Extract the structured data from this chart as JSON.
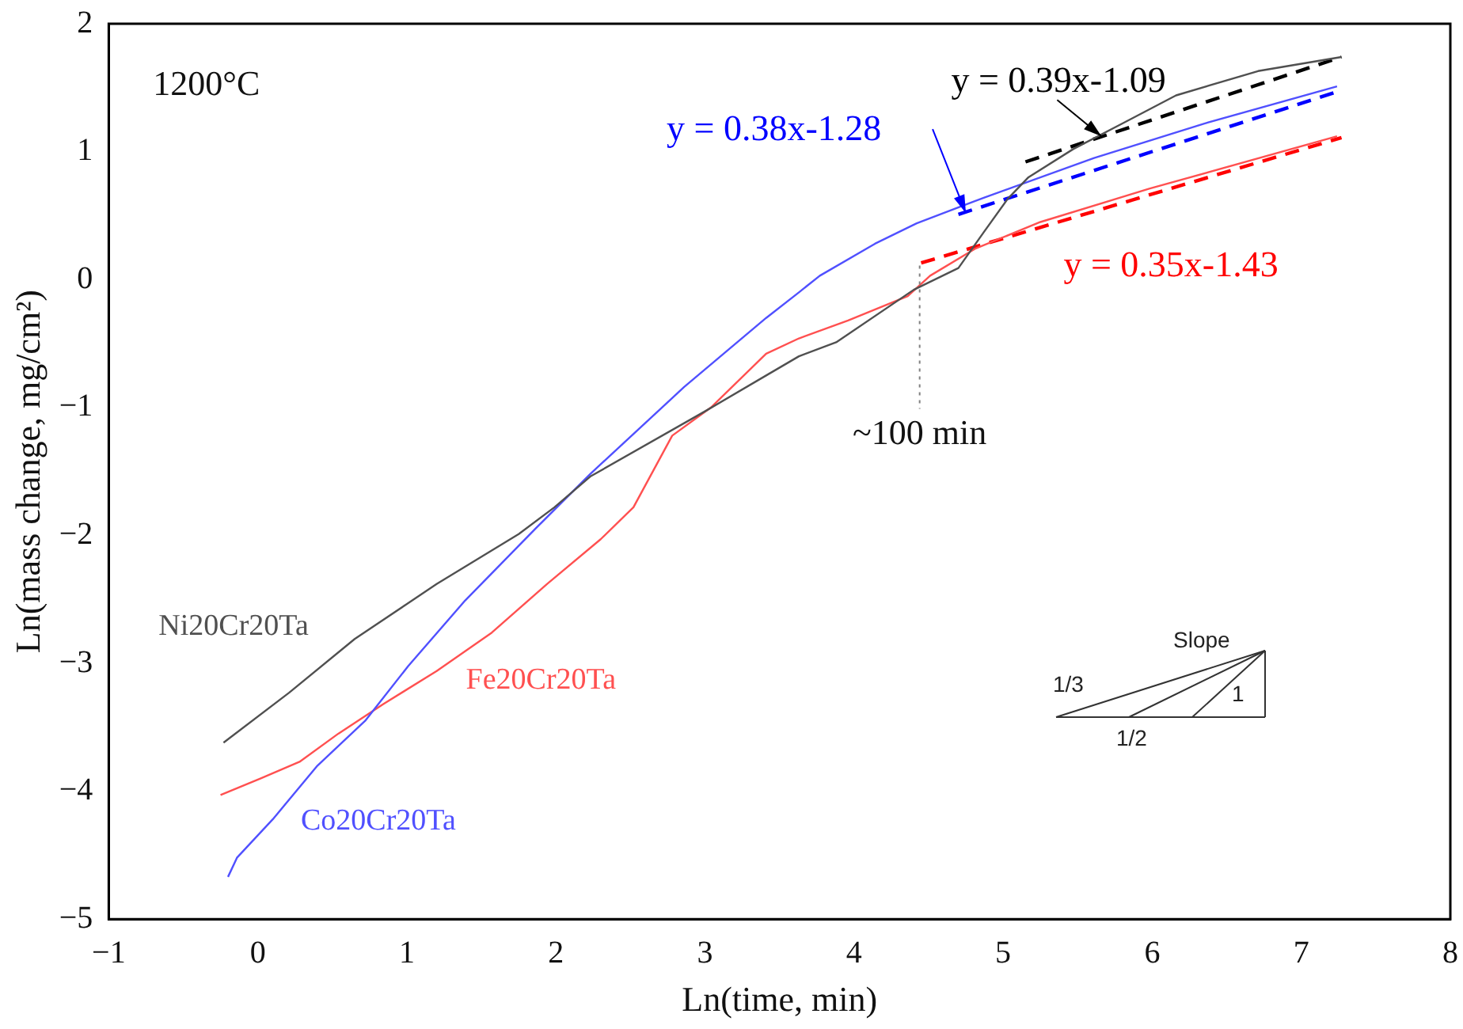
{
  "chart_data": {
    "type": "line",
    "xlabel": "Ln(time, min)",
    "ylabel": "Ln(mass change, mg/cm²)",
    "xlim": [
      -1,
      8
    ],
    "xticks": [
      -1,
      0,
      1,
      2,
      3,
      4,
      5,
      6,
      7,
      8
    ],
    "ylim": [
      -5,
      2
    ],
    "yticks": [
      -5,
      -4,
      -3,
      -2,
      -1,
      0,
      1,
      2
    ],
    "grid": false,
    "legend": false,
    "series": [
      {
        "name": "Ni20Cr20Ta",
        "color": "#505050",
        "x": [
          -0.23,
          0.21,
          0.65,
          1.2,
          1.75,
          1.99,
          2.23,
          3.0,
          3.41,
          3.63,
          3.88,
          4.4,
          4.7,
          4.87,
          5.03,
          5.17,
          5.47,
          5.8,
          6.16,
          6.71,
          7.27
        ],
        "values": [
          -3.62,
          -3.23,
          -2.81,
          -2.38,
          -1.99,
          -1.78,
          -1.54,
          -1.03,
          -0.75,
          -0.6,
          -0.49,
          -0.08,
          0.09,
          0.37,
          0.63,
          0.8,
          1.02,
          1.22,
          1.44,
          1.63,
          1.74
        ]
      },
      {
        "name": "Co20Cr20Ta",
        "color": "#5050ff",
        "x": [
          -0.2,
          -0.14,
          0.1,
          0.4,
          0.72,
          1.01,
          1.39,
          1.86,
          2.23,
          2.86,
          3.41,
          3.63,
          3.77,
          4.14,
          4.42,
          4.87,
          5.61,
          6.35,
          7.24
        ],
        "values": [
          -4.67,
          -4.52,
          -4.22,
          -3.8,
          -3.45,
          -3.02,
          -2.51,
          -1.95,
          -1.52,
          -0.84,
          -0.3,
          -0.1,
          0.03,
          0.28,
          0.44,
          0.64,
          0.95,
          1.22,
          1.51
        ]
      },
      {
        "name": "Fe20Cr20Ta",
        "color": "#ff5050",
        "x": [
          -0.25,
          0.02,
          0.28,
          0.54,
          0.84,
          1.2,
          1.57,
          1.94,
          2.3,
          2.52,
          2.78,
          3.04,
          3.41,
          3.63,
          3.96,
          4.36,
          4.51,
          4.81,
          5.25,
          5.98,
          7.24
        ],
        "values": [
          -4.03,
          -3.9,
          -3.77,
          -3.55,
          -3.32,
          -3.06,
          -2.76,
          -2.38,
          -2.03,
          -1.78,
          -1.22,
          -1.0,
          -0.58,
          -0.46,
          -0.32,
          -0.13,
          0.03,
          0.24,
          0.45,
          0.71,
          1.12
        ]
      },
      {
        "type": "line",
        "color": "#000000",
        "line_style": "dashed",
        "x": [
          5.15,
          7.27
        ],
        "values": [
          0.92,
          1.74
        ]
      },
      {
        "type": "line",
        "color": "#0000ff",
        "line_style": "dashed",
        "x": [
          4.7,
          7.27
        ],
        "values": [
          0.51,
          1.48
        ]
      },
      {
        "type": "line",
        "color": "#ff0000",
        "line_style": "dashed",
        "x": [
          4.45,
          7.27
        ],
        "values": [
          0.13,
          1.11
        ]
      }
    ],
    "ref_lines": [
      {
        "axis": "x",
        "value": 4.44,
        "label": "~100 min",
        "line_style": "dotted",
        "color": "#808080"
      }
    ],
    "annotations": [
      "1200°C",
      {
        "text": "y = 0.39x-1.09",
        "x": 5.66,
        "y": 1.12
      },
      {
        "text": "y = 0.38x-1.28",
        "x": 4.75,
        "y": 0.52
      },
      {
        "text": "y = 0.35x-1.43",
        "x": 6.0,
        "y": 0.67
      },
      "Slope",
      "1/3",
      "1/2",
      "1"
    ]
  }
}
